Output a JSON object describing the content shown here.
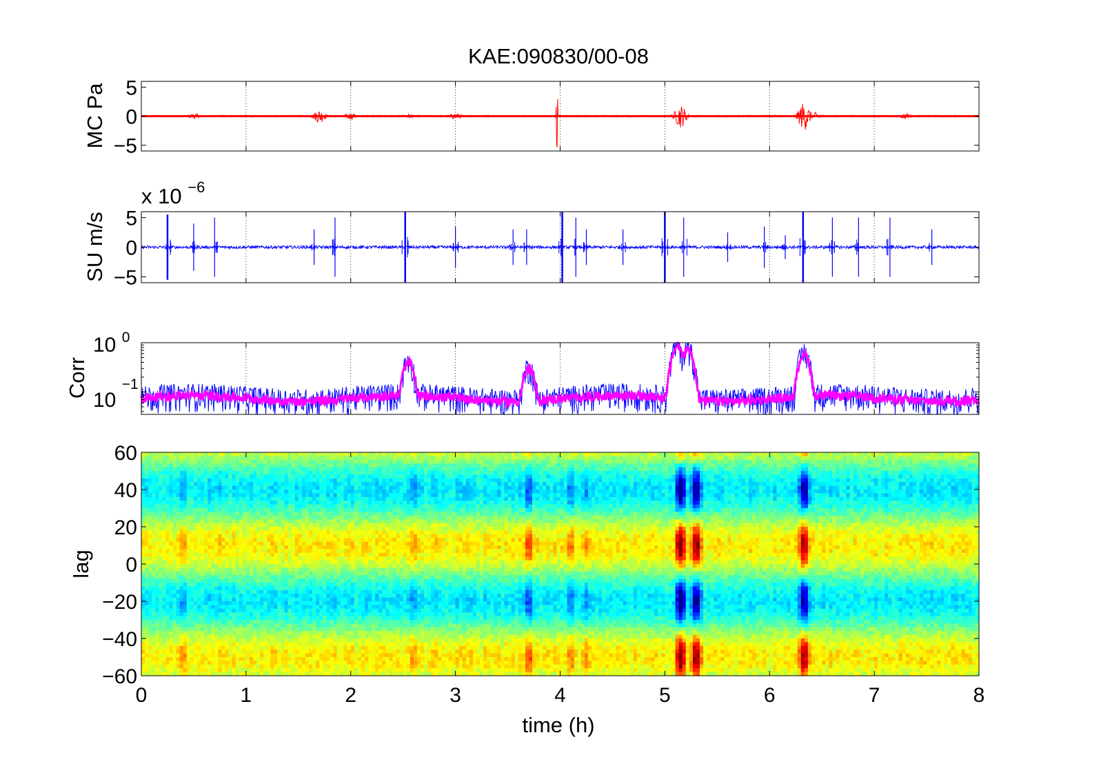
{
  "chart_data": [
    {
      "type": "line",
      "panel": "pressure",
      "title": "KAE:090830/00-08",
      "ylabel": "MC Pa",
      "xlim": [
        0,
        8
      ],
      "ylim": [
        -6,
        6
      ],
      "yticks": [
        -5,
        0,
        5
      ],
      "ytick_labels": [
        "−5",
        "0",
        "5"
      ],
      "grid_x": true,
      "series": [
        {
          "color": "#ff0000",
          "bursts": [
            {
              "t": 0.5,
              "amp": 0.5
            },
            {
              "t": 1.7,
              "amp": 1.2
            },
            {
              "t": 2.0,
              "amp": 0.6
            },
            {
              "t": 2.55,
              "amp": 0.4
            },
            {
              "t": 3.0,
              "amp": 0.6
            },
            {
              "t": 3.97,
              "amp": 6.0
            },
            {
              "t": 5.15,
              "amp": 2.0
            },
            {
              "t": 6.33,
              "amp": 2.5
            },
            {
              "t": 6.45,
              "amp": 0.7
            },
            {
              "t": 7.3,
              "amp": 0.5
            }
          ]
        }
      ]
    },
    {
      "type": "line",
      "panel": "velocity",
      "ylabel": "SU m/s",
      "exponent_base": "x 10",
      "exponent_power": "−6",
      "xlim": [
        0,
        8
      ],
      "ylim": [
        -6,
        6
      ],
      "yticks": [
        -5,
        0,
        5
      ],
      "ytick_labels": [
        "−5",
        "0",
        "5"
      ],
      "grid_x": true,
      "series": [
        {
          "color": "#0000ff",
          "spikes": [
            {
              "t": 0.25,
              "amp": 5.5
            },
            {
              "t": 0.5,
              "amp": 4
            },
            {
              "t": 0.7,
              "amp": 5
            },
            {
              "t": 1.65,
              "amp": 3
            },
            {
              "t": 1.85,
              "amp": 5
            },
            {
              "t": 2.52,
              "amp": 6
            },
            {
              "t": 3.0,
              "amp": 3.5
            },
            {
              "t": 3.55,
              "amp": 3
            },
            {
              "t": 3.68,
              "amp": 3
            },
            {
              "t": 4.02,
              "amp": 6
            },
            {
              "t": 4.15,
              "amp": 5
            },
            {
              "t": 4.25,
              "amp": 3
            },
            {
              "t": 4.6,
              "amp": 3
            },
            {
              "t": 5.0,
              "amp": 6
            },
            {
              "t": 5.18,
              "amp": 5
            },
            {
              "t": 5.6,
              "amp": 2.5
            },
            {
              "t": 5.95,
              "amp": 3.5
            },
            {
              "t": 6.15,
              "amp": 2
            },
            {
              "t": 6.32,
              "amp": 6
            },
            {
              "t": 6.6,
              "amp": 5
            },
            {
              "t": 6.85,
              "amp": 5
            },
            {
              "t": 7.15,
              "amp": 5
            },
            {
              "t": 7.55,
              "amp": 3
            }
          ]
        }
      ]
    },
    {
      "type": "line",
      "panel": "correlation",
      "ylabel": "Corr",
      "yscale": "log",
      "xlim": [
        0,
        8
      ],
      "ytick_labels": [
        {
          "base": "10",
          "exp": "0"
        },
        {
          "base": "10",
          "exp": "−1"
        }
      ],
      "grid_x": true,
      "series": [
        {
          "color": "#0000ff",
          "style": "raw"
        },
        {
          "color": "#ff00ff",
          "style": "smoothed",
          "peaks": [
            {
              "t": 5.12,
              "value": 0.85
            },
            {
              "t": 5.22,
              "value": 0.75
            },
            {
              "t": 6.33,
              "value": 0.6
            },
            {
              "t": 2.55,
              "value": 0.4
            },
            {
              "t": 3.7,
              "value": 0.3
            }
          ]
        }
      ]
    },
    {
      "type": "heatmap",
      "panel": "lag",
      "xlabel": "time (h)",
      "ylabel": "lag",
      "xlim": [
        0,
        8
      ],
      "ylim": [
        -60,
        60
      ],
      "xticks": [
        0,
        1,
        2,
        3,
        4,
        5,
        6,
        7,
        8
      ],
      "xtick_labels": [
        "0",
        "1",
        "2",
        "3",
        "4",
        "5",
        "6",
        "7",
        "8"
      ],
      "yticks": [
        60,
        40,
        20,
        0,
        -20,
        -40,
        -60
      ],
      "ytick_labels": [
        "60",
        "40",
        "20",
        "0",
        "−20",
        "−40",
        "−60"
      ],
      "colormap": "jet",
      "strong_columns": [
        {
          "t": 0.4,
          "strength": 0.45
        },
        {
          "t": 0.75,
          "strength": 0.35
        },
        {
          "t": 2.6,
          "strength": 0.45
        },
        {
          "t": 2.8,
          "strength": 0.35
        },
        {
          "t": 3.7,
          "strength": 0.6
        },
        {
          "t": 4.1,
          "strength": 0.5
        },
        {
          "t": 4.25,
          "strength": 0.45
        },
        {
          "t": 5.15,
          "strength": 1.0
        },
        {
          "t": 5.3,
          "strength": 0.95
        },
        {
          "t": 6.33,
          "strength": 0.9
        },
        {
          "t": 6.5,
          "strength": 0.3
        }
      ]
    }
  ]
}
